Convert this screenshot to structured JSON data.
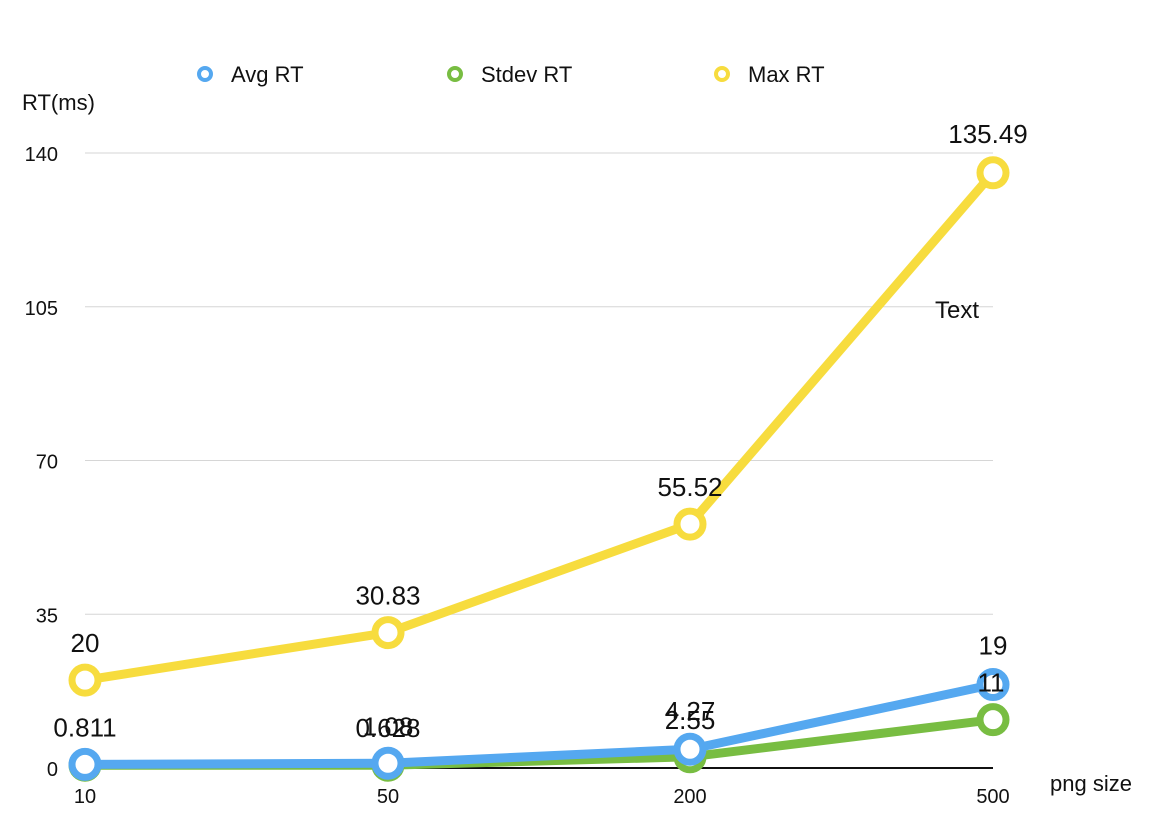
{
  "chart_data": {
    "type": "line",
    "categories": [
      "10",
      "50",
      "200",
      "500"
    ],
    "series": [
      {
        "name": "Avg RT",
        "color": "#55a8f0",
        "values": [
          0.811,
          1.08,
          4.27,
          19
        ],
        "labels": [
          "0.811",
          "1.08",
          "4.27",
          "19"
        ]
      },
      {
        "name": "Stdev RT",
        "color": "#78bd42",
        "values": [
          0.628,
          0.628,
          2.55,
          11
        ],
        "labels": [
          "",
          "0.628",
          "2.55",
          "11"
        ]
      },
      {
        "name": "Max RT",
        "color": "#f7dc3e",
        "values": [
          20,
          30.83,
          55.52,
          135.49
        ],
        "labels": [
          "20",
          "30.83",
          "55.52",
          "135.49"
        ]
      }
    ],
    "yticks": [
      "0",
      "35",
      "70",
      "105",
      "140"
    ],
    "ylim": [
      0,
      140
    ],
    "xlabel": "png size",
    "ylabel": "RT(ms)",
    "annotation": "Text",
    "grid": true,
    "legend_position": "top"
  }
}
